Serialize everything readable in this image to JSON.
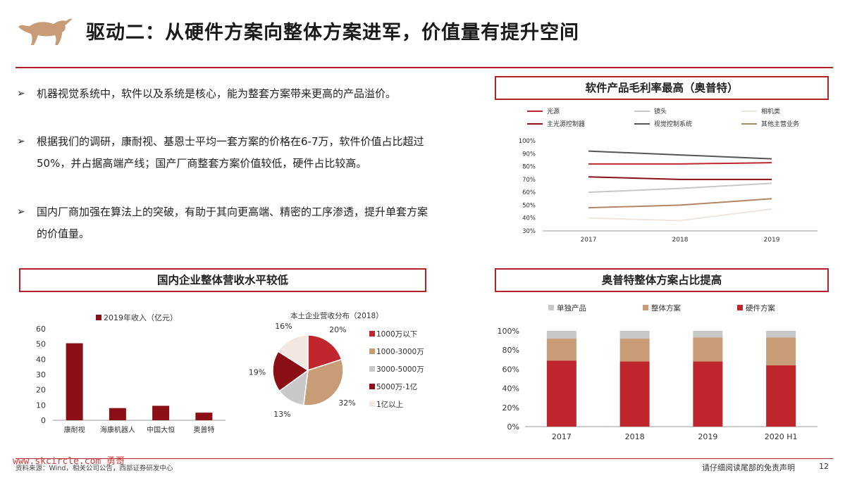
{
  "header": {
    "title": "驱动二：从硬件方案向整体方案进军，价值量有提升空间",
    "accent_color": "#b5232a"
  },
  "bullets": [
    {
      "text": "机器视觉系统中，软件以及系统是核心，能为整套方案带来更高的产品溢价。"
    },
    {
      "text": "根据我们的调研，康耐视、基恩士平均一套方案的价格在6-7万，软件价值占比超过50%，并占据高端产线；国产厂商整套方案价值较低，硬件占比较高。"
    },
    {
      "text": "国内厂商加强在算法上的突破，有助于其向更高端、精密的工序渗透，提升单套方案的价值量。"
    }
  ],
  "boxes": {
    "margin_box": "软件产品毛利率最高（奥普特）",
    "domestic_box": "国内企业整体营收水平较低",
    "share_box": "奥普特整体方案占比提高"
  },
  "chart_data": [
    {
      "type": "line",
      "x": [
        "2017",
        "2018",
        "2019"
      ],
      "ylim": [
        0.3,
        1.0
      ],
      "yticks": [
        "100%",
        "90%",
        "80%",
        "70%",
        "60%",
        "50%",
        "40%",
        "30%"
      ],
      "series": [
        {
          "name": "光源",
          "values": [
            0.82,
            0.82,
            0.83
          ],
          "color": "#c0272d"
        },
        {
          "name": "镜头",
          "values": [
            0.6,
            0.63,
            0.67
          ],
          "color": "#c8c8c8"
        },
        {
          "name": "相机类",
          "values": [
            0.4,
            0.38,
            0.47
          ],
          "color": "#efe7df"
        },
        {
          "name": "主光源控制器",
          "values": [
            0.72,
            0.7,
            0.7
          ],
          "color": "#8a1016"
        },
        {
          "name": "视觉控制系统",
          "values": [
            0.92,
            0.89,
            0.86
          ],
          "color": "#555555"
        },
        {
          "name": "其他主营业务",
          "values": [
            0.48,
            0.5,
            0.55
          ],
          "color": "#b58563"
        }
      ]
    },
    {
      "type": "bar",
      "legend": "2019年收入（亿元）",
      "categories": [
        "康耐视",
        "海康机器人",
        "中国大恒",
        "奥普特"
      ],
      "values": [
        50.5,
        8,
        9.5,
        5
      ],
      "ylim": [
        0,
        60
      ],
      "yticks": [
        "60",
        "50",
        "40",
        "30",
        "20",
        "10",
        "0"
      ],
      "color": "#8a1016"
    },
    {
      "type": "pie",
      "title": "本土企业营收分布（2018）",
      "slices": [
        {
          "label": "1000万以下",
          "value": 20,
          "display": "20%",
          "color": "#c0272d"
        },
        {
          "label": "1000-3000万",
          "value": 32,
          "display": "32%",
          "color": "#c79c76"
        },
        {
          "label": "3000-5000万",
          "value": 13,
          "display": "13%",
          "color": "#c8c8c8"
        },
        {
          "label": "5000万-1亿",
          "value": 19,
          "display": "19%",
          "color": "#8a1016"
        },
        {
          "label": "1亿以上",
          "value": 16,
          "display": "16%",
          "color": "#f2e8e1"
        }
      ]
    },
    {
      "type": "bar",
      "stacked": true,
      "categories": [
        "2017",
        "2018",
        "2019",
        "2020 H1"
      ],
      "yticks": [
        "100%",
        "80%",
        "60%",
        "40%",
        "20%",
        "0%"
      ],
      "ylim": [
        0,
        1
      ],
      "series": [
        {
          "name": "硬件方案",
          "values": [
            0.69,
            0.68,
            0.68,
            0.64
          ],
          "color": "#c0272d"
        },
        {
          "name": "整体方案",
          "values": [
            0.23,
            0.24,
            0.25,
            0.29
          ],
          "color": "#c79c76"
        },
        {
          "name": "单独产品",
          "values": [
            0.08,
            0.08,
            0.07,
            0.07
          ],
          "color": "#c8c8c8"
        }
      ],
      "legend_order": [
        "单独产品",
        "整体方案",
        "硬件方案"
      ]
    }
  ],
  "footer": {
    "source": "资料来源：Wind，相关公司公告，西部证券研发中心",
    "disclaimer": "请仔细阅读尾部的免责声明",
    "page": "12",
    "watermark": "www.skcircle.com 勇哥"
  }
}
